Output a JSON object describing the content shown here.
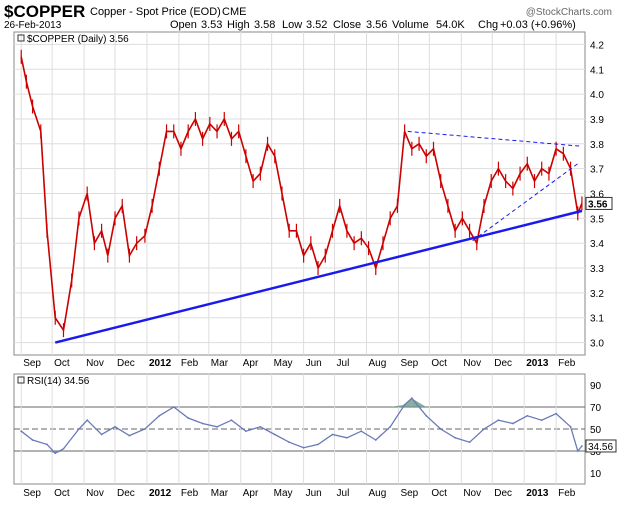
{
  "header": {
    "symbol": "$COPPER",
    "name": "Copper - Spot Price (EOD)",
    "exchange": "CME",
    "date": "26-Feb-2013",
    "open_label": "Open",
    "open": "3.53",
    "high_label": "High",
    "high": "3.58",
    "low_label": "Low",
    "low": "3.52",
    "close_label": "Close",
    "close": "3.56",
    "volume_label": "Volume",
    "volume": "54.0K",
    "chg_label": "Chg",
    "chg": "+0.03 (+0.96%)",
    "watermark": "@StockCharts.com"
  },
  "colors": {
    "candle": "#cc0000",
    "trend": "#1a1aee",
    "rsi_line": "#6a7ab8",
    "rsi_fill": "#6a9a8a",
    "grid": "#dddddd"
  },
  "chart_data": [
    {
      "type": "line",
      "legend": "$COPPER (Daily) 3.56",
      "last_value_label": "3.56",
      "x": [
        "2011-09-01",
        "2011-09-06",
        "2011-09-12",
        "2011-09-20",
        "2011-09-26",
        "2011-10-04",
        "2011-10-12",
        "2011-10-20",
        "2011-10-27",
        "2011-11-04",
        "2011-11-11",
        "2011-11-18",
        "2011-11-24",
        "2011-12-01",
        "2011-12-08",
        "2011-12-15",
        "2011-12-22",
        "2011-12-30",
        "2012-01-06",
        "2012-01-13",
        "2012-01-20",
        "2012-01-27",
        "2012-02-03",
        "2012-02-10",
        "2012-02-17",
        "2012-02-24",
        "2012-03-02",
        "2012-03-09",
        "2012-03-16",
        "2012-03-23",
        "2012-03-30",
        "2012-04-06",
        "2012-04-13",
        "2012-04-20",
        "2012-04-27",
        "2012-05-04",
        "2012-05-11",
        "2012-05-18",
        "2012-05-25",
        "2012-06-01",
        "2012-06-08",
        "2012-06-15",
        "2012-06-22",
        "2012-06-29",
        "2012-07-06",
        "2012-07-13",
        "2012-07-20",
        "2012-07-27",
        "2012-08-03",
        "2012-08-10",
        "2012-08-17",
        "2012-08-24",
        "2012-08-31",
        "2012-09-07",
        "2012-09-14",
        "2012-09-21",
        "2012-09-28",
        "2012-10-05",
        "2012-10-12",
        "2012-10-19",
        "2012-10-26",
        "2012-11-02",
        "2012-11-09",
        "2012-11-16",
        "2012-11-23",
        "2012-11-30",
        "2012-12-07",
        "2012-12-14",
        "2012-12-21",
        "2012-12-28",
        "2013-01-04",
        "2013-01-11",
        "2013-01-18",
        "2013-01-25",
        "2013-02-01",
        "2013-02-08",
        "2013-02-15",
        "2013-02-22",
        "2013-02-26"
      ],
      "y": [
        4.15,
        4.05,
        3.95,
        3.85,
        3.45,
        3.1,
        3.05,
        3.25,
        3.5,
        3.6,
        3.4,
        3.45,
        3.35,
        3.5,
        3.55,
        3.35,
        3.4,
        3.43,
        3.55,
        3.7,
        3.85,
        3.85,
        3.78,
        3.85,
        3.9,
        3.82,
        3.88,
        3.85,
        3.9,
        3.82,
        3.85,
        3.75,
        3.65,
        3.68,
        3.8,
        3.75,
        3.6,
        3.45,
        3.45,
        3.35,
        3.4,
        3.3,
        3.35,
        3.45,
        3.55,
        3.45,
        3.4,
        3.42,
        3.38,
        3.3,
        3.4,
        3.5,
        3.55,
        3.85,
        3.78,
        3.8,
        3.75,
        3.78,
        3.65,
        3.55,
        3.45,
        3.5,
        3.45,
        3.4,
        3.55,
        3.65,
        3.7,
        3.65,
        3.62,
        3.68,
        3.72,
        3.65,
        3.7,
        3.68,
        3.78,
        3.76,
        3.7,
        3.52,
        3.56
      ],
      "ylim": [
        2.95,
        4.25
      ],
      "y_ticks": [
        "3.0",
        "3.1",
        "3.2",
        "3.3",
        "3.4",
        "3.5",
        "3.6",
        "3.7",
        "3.8",
        "3.9",
        "4.0",
        "4.1",
        "4.2"
      ],
      "x_tick_labels": [
        "Sep",
        "Oct",
        "Nov",
        "Dec",
        "2012",
        "Feb",
        "Mar",
        "Apr",
        "May",
        "Jun",
        "Jul",
        "Aug",
        "Sep",
        "Oct",
        "Nov",
        "Dec",
        "2013",
        "Feb"
      ],
      "trendlines": [
        {
          "style": "solid",
          "from": [
            "2011-10-04",
            3.0
          ],
          "to": [
            "2013-02-26",
            3.53
          ]
        },
        {
          "style": "dashed",
          "from": [
            "2012-09-10",
            3.85
          ],
          "to": [
            "2013-02-26",
            3.79
          ]
        },
        {
          "style": "dashed",
          "from": [
            "2012-11-12",
            3.41
          ],
          "to": [
            "2013-02-22",
            3.72
          ]
        }
      ]
    },
    {
      "type": "line",
      "legend": "RSI(14) 34.56",
      "last_value_label": "34.56",
      "x": [
        "2011-09-01",
        "2011-09-12",
        "2011-09-26",
        "2011-10-04",
        "2011-10-12",
        "2011-10-27",
        "2011-11-04",
        "2011-11-18",
        "2011-12-01",
        "2011-12-15",
        "2011-12-30",
        "2012-01-13",
        "2012-01-27",
        "2012-02-10",
        "2012-02-24",
        "2012-03-09",
        "2012-03-23",
        "2012-04-06",
        "2012-04-20",
        "2012-05-04",
        "2012-05-18",
        "2012-06-01",
        "2012-06-15",
        "2012-06-29",
        "2012-07-13",
        "2012-07-27",
        "2012-08-10",
        "2012-08-24",
        "2012-09-07",
        "2012-09-14",
        "2012-09-28",
        "2012-10-12",
        "2012-10-26",
        "2012-11-09",
        "2012-11-23",
        "2012-12-07",
        "2012-12-21",
        "2013-01-04",
        "2013-01-18",
        "2013-02-01",
        "2013-02-15",
        "2013-02-22",
        "2013-02-26"
      ],
      "y": [
        48,
        40,
        36,
        28,
        32,
        50,
        58,
        45,
        52,
        44,
        50,
        62,
        70,
        60,
        55,
        52,
        58,
        48,
        52,
        45,
        38,
        33,
        36,
        45,
        42,
        48,
        40,
        52,
        72,
        78,
        62,
        50,
        42,
        38,
        50,
        58,
        55,
        62,
        58,
        64,
        52,
        30,
        34.56
      ],
      "ylim": [
        0,
        100
      ],
      "y_ticks": [
        "10",
        "30",
        "50",
        "70",
        "90"
      ],
      "levels": [
        30,
        50,
        70
      ],
      "x_tick_labels": [
        "Sep",
        "Oct",
        "Nov",
        "Dec",
        "2012",
        "Feb",
        "Mar",
        "Apr",
        "May",
        "Jun",
        "Jul",
        "Aug",
        "Sep",
        "Oct",
        "Nov",
        "Dec",
        "2013",
        "Feb"
      ]
    }
  ]
}
